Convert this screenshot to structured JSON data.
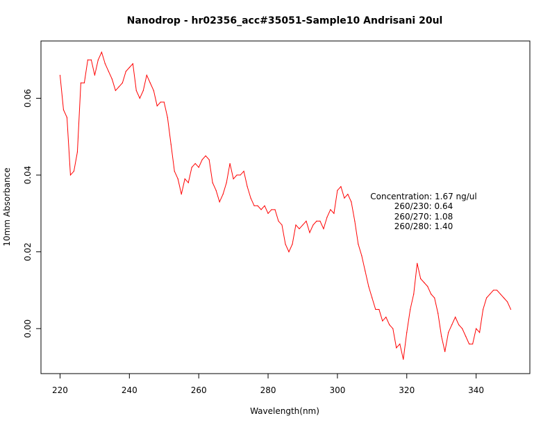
{
  "chart_data": {
    "type": "line",
    "title": "Nanodrop - hr02356_acc#35051-Sample10 Andrisani 20ul",
    "xlabel": "Wavelength(nm)",
    "ylabel": "10mm Absorbance",
    "xlim": [
      214.5,
      355.5
    ],
    "ylim": [
      -0.01172,
      0.07492
    ],
    "x_ticks": [
      220,
      240,
      260,
      280,
      300,
      320,
      340
    ],
    "x_tick_labels": [
      "220",
      "240",
      "260",
      "280",
      "300",
      "320",
      "340"
    ],
    "y_ticks": [
      0.0,
      0.02,
      0.04,
      0.06
    ],
    "y_tick_labels": [
      "0.00",
      "0.02",
      "0.04",
      "0.06"
    ],
    "grid": false,
    "line_color": "#ff0000",
    "annotations": [
      "Concentration: 1.67 ng/ul",
      "260/230: 0.64",
      "260/270: 1.08",
      "260/280: 1.40"
    ],
    "series": [
      {
        "x": [
          220,
          221,
          222,
          223,
          224,
          225,
          226,
          227,
          228,
          229,
          230,
          231,
          232,
          233,
          234,
          235,
          236,
          237,
          238,
          239,
          240,
          241,
          242,
          243,
          244,
          245,
          246,
          247,
          248,
          249,
          250,
          251,
          252,
          253,
          254,
          255,
          256,
          257,
          258,
          259,
          260,
          261,
          262,
          263,
          264,
          265,
          266,
          267,
          268,
          269,
          270,
          271,
          272,
          273,
          274,
          275,
          276,
          277,
          278,
          279,
          280,
          281,
          282,
          283,
          284,
          285,
          286,
          287,
          288,
          289,
          290,
          291,
          292,
          293,
          294,
          295,
          296,
          297,
          298,
          299,
          300,
          301,
          302,
          303,
          304,
          305,
          306,
          307,
          308,
          309,
          310,
          311,
          312,
          313,
          314,
          315,
          316,
          317,
          318,
          319,
          320,
          321,
          322,
          323,
          324,
          325,
          326,
          327,
          328,
          329,
          330,
          331,
          332,
          333,
          334,
          335,
          336,
          337,
          338,
          339,
          340,
          341,
          342,
          343,
          344,
          345,
          346,
          347,
          348,
          349,
          350
        ],
        "values": [
          0.066,
          0.057,
          0.055,
          0.04,
          0.041,
          0.046,
          0.064,
          0.064,
          0.07,
          0.07,
          0.066,
          0.07,
          0.072,
          0.069,
          0.067,
          0.065,
          0.062,
          0.063,
          0.064,
          0.067,
          0.068,
          0.069,
          0.062,
          0.06,
          0.062,
          0.066,
          0.064,
          0.062,
          0.058,
          0.059,
          0.059,
          0.055,
          0.048,
          0.041,
          0.039,
          0.035,
          0.039,
          0.038,
          0.042,
          0.043,
          0.042,
          0.044,
          0.045,
          0.044,
          0.038,
          0.036,
          0.033,
          0.035,
          0.038,
          0.043,
          0.039,
          0.04,
          0.04,
          0.041,
          0.037,
          0.034,
          0.032,
          0.032,
          0.031,
          0.032,
          0.03,
          0.031,
          0.031,
          0.028,
          0.027,
          0.022,
          0.02,
          0.022,
          0.027,
          0.026,
          0.027,
          0.028,
          0.025,
          0.027,
          0.028,
          0.028,
          0.026,
          0.029,
          0.031,
          0.03,
          0.036,
          0.037,
          0.034,
          0.035,
          0.033,
          0.028,
          0.022,
          0.019,
          0.015,
          0.011,
          0.008,
          0.005,
          0.005,
          0.002,
          0.003,
          0.001,
          0.0,
          -0.005,
          -0.004,
          -0.008,
          -0.001,
          0.005,
          0.009,
          0.017,
          0.013,
          0.012,
          0.011,
          0.009,
          0.008,
          0.004,
          -0.002,
          -0.006,
          -0.001,
          0.001,
          0.003,
          0.001,
          0.0,
          -0.002,
          -0.004,
          -0.004,
          0.0,
          -0.001,
          0.005,
          0.008,
          0.009,
          0.01,
          0.01,
          0.009,
          0.008,
          0.007,
          0.005
        ]
      }
    ]
  }
}
